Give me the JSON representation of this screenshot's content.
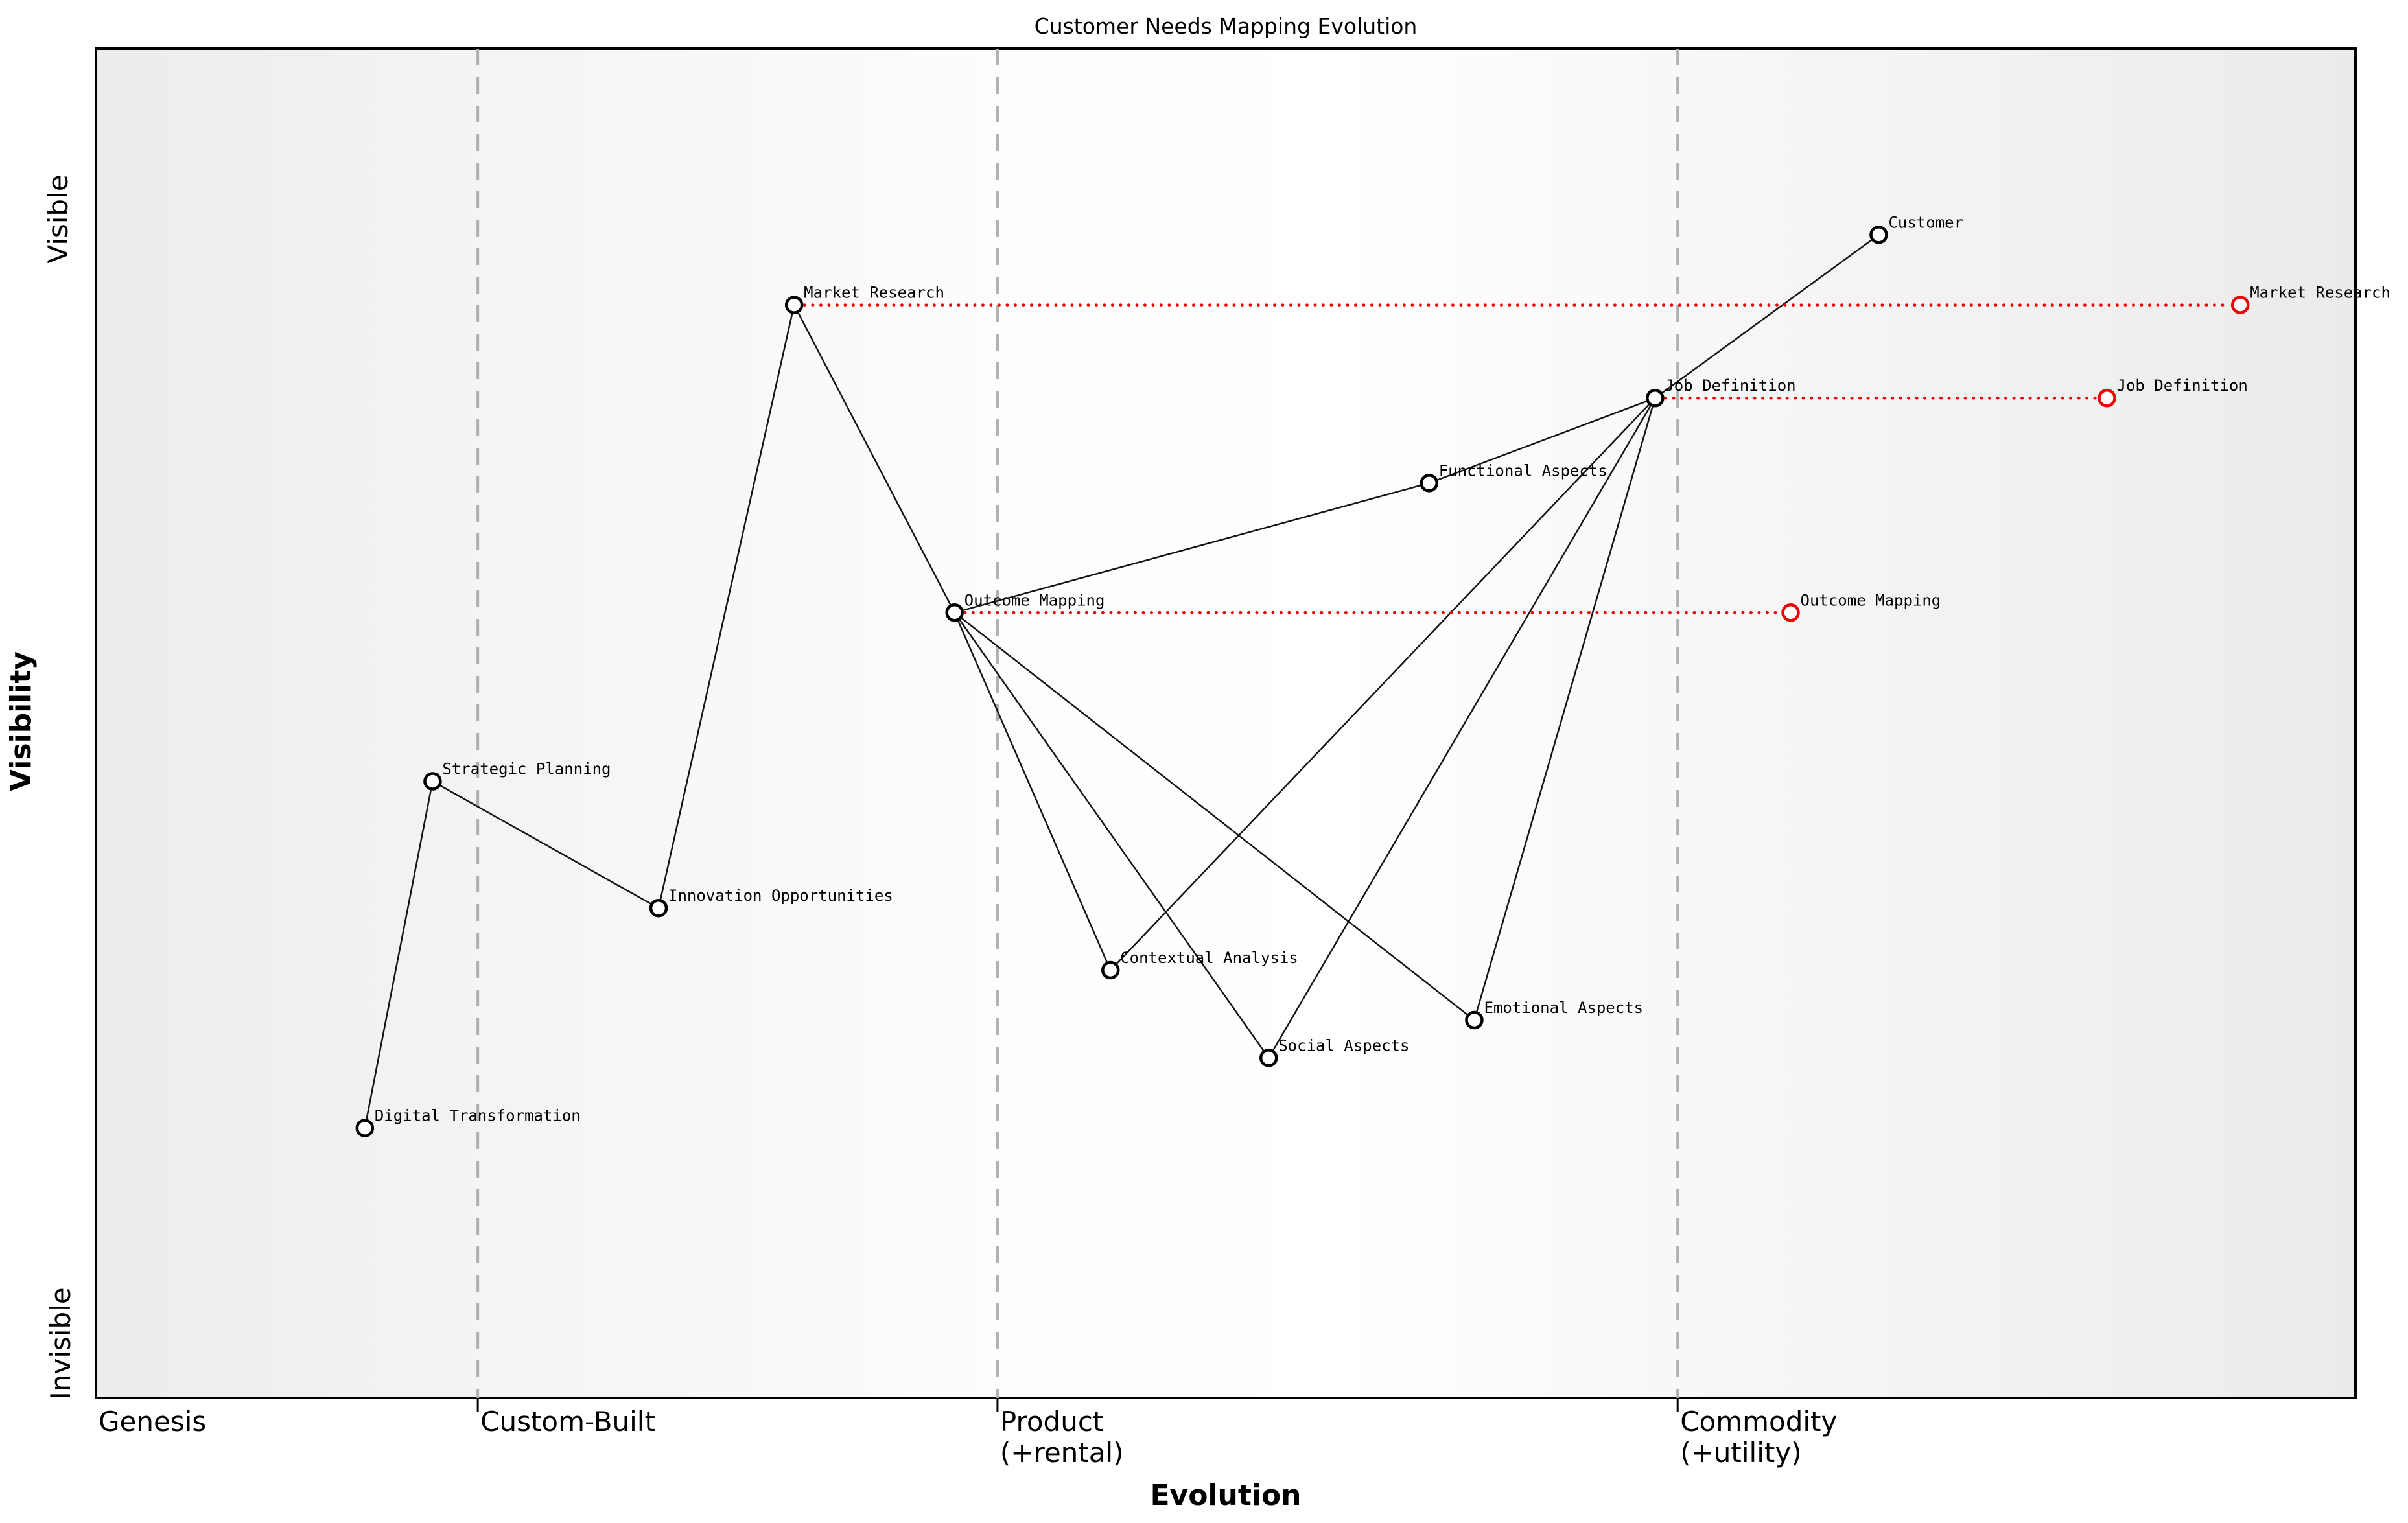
{
  "title": "Customer Needs Mapping Evolution",
  "axes": {
    "x_label": "Evolution",
    "y_label": "Visibility",
    "y_top_tick": "Visible",
    "y_bottom_tick": "Invisible"
  },
  "colors": {
    "node_stroke": "#000000",
    "evolved_node_stroke": "#f00000",
    "evolve_line": "#f00000",
    "edge": "#141414",
    "stage_boundary": "#b0b0b0",
    "plot_bg_edge": "#ececec",
    "plot_bg_middle": "#ffffff"
  },
  "chart_data": {
    "type": "scatter",
    "subtype": "wardley-map",
    "title": "Customer Needs Mapping Evolution",
    "xlabel": "Evolution",
    "ylabel": "Visibility",
    "x_range_note": "evolution 0..1 from Genesis to Commodity",
    "y_range_note": "visibility 0 (Invisible) .. 1 (Visible)",
    "grid": "vertical dashed stage boundaries only",
    "y_tick_labels": {
      "top": "Visible",
      "bottom": "Invisible"
    },
    "x_stage_labels": [
      {
        "lines": [
          "Genesis"
        ],
        "evolution": 0.0
      },
      {
        "lines": [
          "Custom-Built"
        ],
        "evolution": 0.169
      },
      {
        "lines": [
          "Product",
          "(+rental)"
        ],
        "evolution": 0.399
      },
      {
        "lines": [
          "Commodity",
          "(+utility)"
        ],
        "evolution": 0.7
      }
    ],
    "stage_boundaries": [
      0.169,
      0.399,
      0.7
    ],
    "nodes": [
      {
        "label": "Customer",
        "evolution": 0.789,
        "visibility": 0.862
      },
      {
        "label": "Market Research",
        "evolution": 0.309,
        "visibility": 0.81
      },
      {
        "label": "Job Definition",
        "evolution": 0.69,
        "visibility": 0.741
      },
      {
        "label": "Functional Aspects",
        "evolution": 0.59,
        "visibility": 0.678
      },
      {
        "label": "Outcome Mapping",
        "evolution": 0.38,
        "visibility": 0.582
      },
      {
        "label": "Strategic Planning",
        "evolution": 0.149,
        "visibility": 0.457
      },
      {
        "label": "Innovation Opportunities",
        "evolution": 0.249,
        "visibility": 0.363
      },
      {
        "label": "Contextual Analysis",
        "evolution": 0.449,
        "visibility": 0.317
      },
      {
        "label": "Emotional Aspects",
        "evolution": 0.61,
        "visibility": 0.28
      },
      {
        "label": "Social Aspects",
        "evolution": 0.519,
        "visibility": 0.252
      },
      {
        "label": "Digital Transformation",
        "evolution": 0.119,
        "visibility": 0.2
      }
    ],
    "edges": [
      [
        "Digital Transformation",
        "Strategic Planning"
      ],
      [
        "Strategic Planning",
        "Innovation Opportunities"
      ],
      [
        "Innovation Opportunities",
        "Market Research"
      ],
      [
        "Market Research",
        "Outcome Mapping"
      ],
      [
        "Outcome Mapping",
        "Functional Aspects"
      ],
      [
        "Functional Aspects",
        "Job Definition"
      ],
      [
        "Job Definition",
        "Customer"
      ],
      [
        "Outcome Mapping",
        "Contextual Analysis"
      ],
      [
        "Outcome Mapping",
        "Social Aspects"
      ],
      [
        "Outcome Mapping",
        "Emotional Aspects"
      ],
      [
        "Job Definition",
        "Contextual Analysis"
      ],
      [
        "Job Definition",
        "Social Aspects"
      ],
      [
        "Job Definition",
        "Emotional Aspects"
      ]
    ],
    "evolutions": [
      {
        "label": "Market Research",
        "visibility": 0.81,
        "from": 0.309,
        "to": 0.949
      },
      {
        "label": "Job Definition",
        "visibility": 0.741,
        "from": 0.69,
        "to": 0.89
      },
      {
        "label": "Outcome Mapping",
        "visibility": 0.582,
        "from": 0.38,
        "to": 0.75
      }
    ],
    "legend": "none"
  }
}
